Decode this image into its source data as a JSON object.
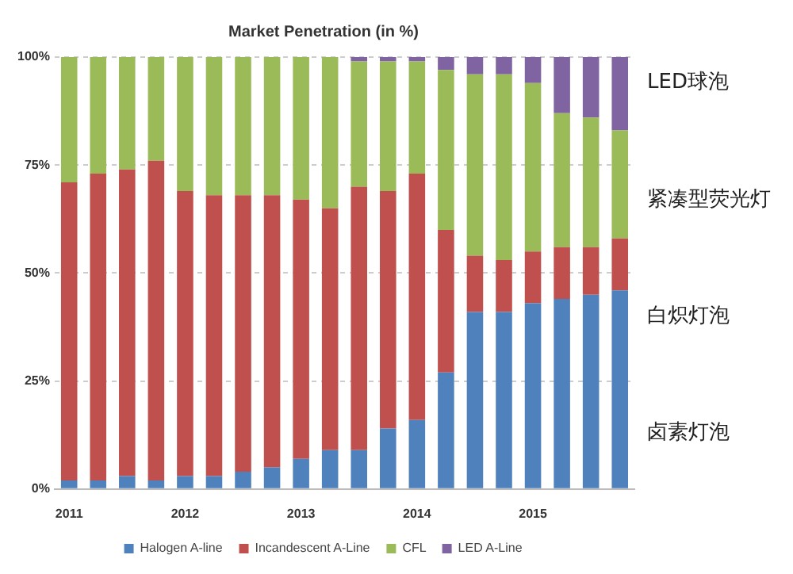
{
  "chart_data": {
    "type": "bar",
    "title": "Market Penetration (in %)",
    "stacked": true,
    "categories": [
      "2011",
      null,
      null,
      null,
      "2012",
      null,
      null,
      null,
      "2013",
      null,
      null,
      null,
      "2014",
      null,
      null,
      null,
      "2015",
      null,
      null,
      null
    ],
    "series": [
      {
        "name": "Halogen A-line",
        "color": "#4f81bd",
        "values": [
          2,
          2,
          3,
          2,
          3,
          3,
          4,
          5,
          7,
          9,
          9,
          14,
          16,
          27,
          41,
          41,
          43,
          44,
          45,
          46
        ]
      },
      {
        "name": "Incandescent A-Line",
        "color": "#c0504d",
        "values": [
          69,
          71,
          71,
          74,
          66,
          65,
          64,
          63,
          60,
          56,
          61,
          55,
          57,
          33,
          13,
          12,
          12,
          12,
          11,
          12
        ]
      },
      {
        "name": "CFL",
        "color": "#9bbb59",
        "values": [
          29,
          27,
          26,
          24,
          31,
          32,
          32,
          32,
          33,
          35,
          29,
          30,
          26,
          37,
          42,
          43,
          39,
          31,
          30,
          25
        ]
      },
      {
        "name": "LED A-Line",
        "color": "#8064a2",
        "values": [
          0,
          0,
          0,
          0,
          0,
          0,
          0,
          0,
          0,
          0,
          1,
          1,
          1,
          3,
          4,
          4,
          6,
          13,
          14,
          17
        ]
      }
    ],
    "ylim": [
      0,
      100
    ],
    "yticks": [
      {
        "value": 0,
        "label": "0%"
      },
      {
        "value": 25,
        "label": "25%"
      },
      {
        "value": 50,
        "label": "50%"
      },
      {
        "value": 75,
        "label": "75%"
      },
      {
        "value": 100,
        "label": "100%"
      }
    ],
    "grid": "y",
    "legend": "bottom",
    "annotations": [
      "LED球泡",
      "紧凑型荧光灯",
      "白炽灯泡",
      "卤素灯泡"
    ]
  }
}
